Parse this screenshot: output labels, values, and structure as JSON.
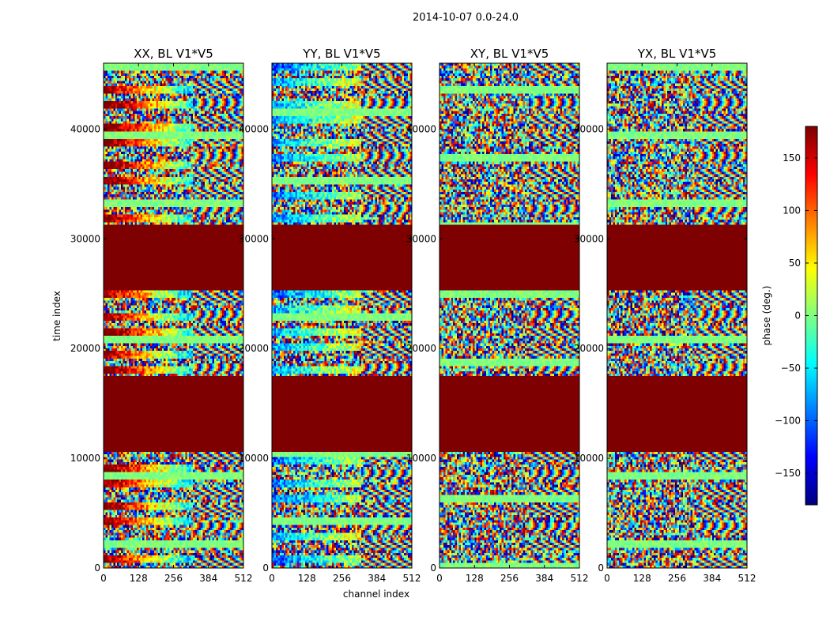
{
  "chart_data": {
    "type": "heatmap",
    "suptitle": "2014-10-07 0.0-24.0",
    "panels": [
      {
        "title": "XX, BL V1*V5",
        "style": "parallel"
      },
      {
        "title": "YY, BL V1*V5",
        "style": "parallel"
      },
      {
        "title": "XY, BL V1*V5",
        "style": "cross"
      },
      {
        "title": "YX, BL V1*V5",
        "style": "cross"
      }
    ],
    "xlabel": "channel index",
    "ylabel": "time index",
    "xlim": [
      0,
      512
    ],
    "ylim": [
      0,
      46000
    ],
    "xticks": [
      0,
      128,
      256,
      384,
      512
    ],
    "yticks": [
      0,
      10000,
      20000,
      30000,
      40000
    ],
    "flagged_time_ranges": [
      [
        10500,
        17500
      ],
      [
        25300,
        31200
      ]
    ],
    "colorbar": {
      "label": "phase (deg.)",
      "range": [
        -180,
        180
      ],
      "ticks": [
        -150,
        -100,
        -50,
        0,
        50,
        100,
        150
      ],
      "colormap": "jet"
    },
    "colors": {
      "flagged": "#7f0000",
      "noise_base": "#7fff7f"
    }
  }
}
